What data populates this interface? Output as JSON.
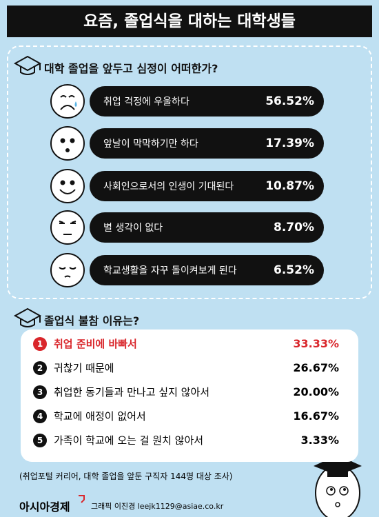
{
  "header": {
    "title": "요즘, 졸업식을 대하는 대학생들"
  },
  "feelings": {
    "question": "대학 졸업을 앞두고 심정이 어떠한가?",
    "items": [
      {
        "label": "취업 걱정에 우울하다",
        "percent": "56.52%"
      },
      {
        "label": "앞날이 막막하기만 하다",
        "percent": "17.39%"
      },
      {
        "label": "사회인으로서의 인생이 기대된다",
        "percent": "10.87%"
      },
      {
        "label": "별 생각이 없다",
        "percent": "8.70%"
      },
      {
        "label": "학교생활을 자꾸 돌이켜보게 된다",
        "percent": "6.52%"
      }
    ]
  },
  "reasons": {
    "question": "졸업식 불참 이유는?",
    "items": [
      {
        "num": "1",
        "label": "취업 준비에 바빠서",
        "percent": "33.33%"
      },
      {
        "num": "2",
        "label": "귀찮기 때문에",
        "percent": "26.67%"
      },
      {
        "num": "3",
        "label": "취업한 동기들과 만나고 싶지 않아서",
        "percent": "20.00%"
      },
      {
        "num": "4",
        "label": "학교에 애정이 없어서",
        "percent": "16.67%"
      },
      {
        "num": "5",
        "label": "가족이 학교에 오는 걸 원치 않아서",
        "percent": "3.33%"
      }
    ]
  },
  "footer": {
    "source": "(취업포털 커리어, 대학 졸업을 앞둔 구직자 144명 대상 조사)",
    "brand": "아시아경제",
    "credit": "그래픽 이진경 leejk1129@asiae.co.kr"
  }
}
